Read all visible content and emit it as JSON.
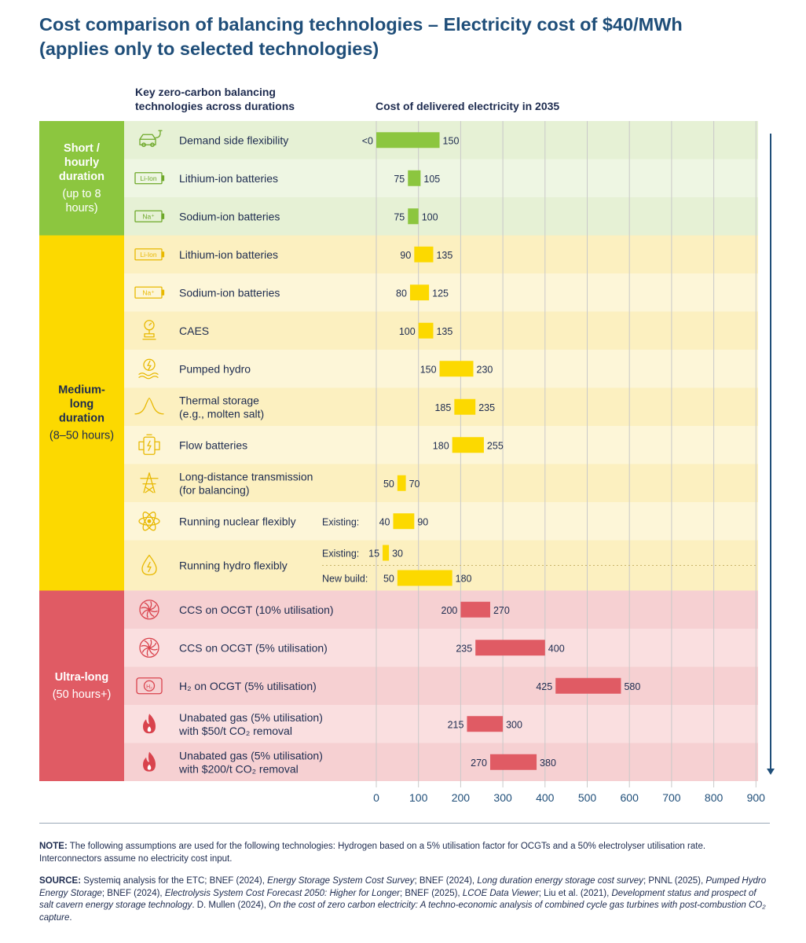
{
  "title_line1": "Cost comparison of balancing technologies – Electricity cost of $40/MWh",
  "title_line2": "(applies only to selected technologies)",
  "col_head_left_line1": "Key zero-carbon balancing",
  "col_head_left_line2": "technologies across durations",
  "col_head_right": "Cost of delivered electricity in 2035",
  "colors": {
    "short": "#8cc63f",
    "medium": "#fcd900",
    "ultra": "#e05b64",
    "axis_text": "#1f4e79",
    "arrow": "#1f4e79"
  },
  "chart_data": {
    "type": "bar",
    "orientation": "horizontal-range",
    "title": "Cost of delivered electricity in 2035",
    "xlim": [
      0,
      900
    ],
    "xticks": [
      0,
      100,
      200,
      300,
      400,
      500,
      600,
      700,
      800,
      900
    ],
    "grid": true,
    "groups": [
      {
        "key": "short",
        "label_lines": [
          [
            "Short /",
            true
          ],
          [
            "hourly",
            true
          ],
          [
            "duration",
            true
          ],
          [
            "(up to 8",
            false
          ],
          [
            "hours)",
            false
          ]
        ]
      },
      {
        "key": "medium",
        "label_lines": [
          [
            "Medium-",
            true
          ],
          [
            "long",
            true
          ],
          [
            "duration",
            true
          ],
          [
            "(8–50 hours)",
            false
          ]
        ]
      },
      {
        "key": "ultra",
        "label_lines": [
          [
            "Ultra-long",
            true
          ],
          [
            "(50 hours+)",
            false
          ]
        ]
      }
    ],
    "rows": [
      {
        "group": "short",
        "icon": "car-charging-icon",
        "name": "Demand side flexibility",
        "bars": [
          {
            "sub": "",
            "low": 0,
            "high": 150,
            "low_label": "<0",
            "high_label": "150"
          }
        ]
      },
      {
        "group": "short",
        "icon": "li-ion-battery-icon",
        "icon_text": "Li-Ion",
        "name": "Lithium-ion batteries",
        "bars": [
          {
            "sub": "",
            "low": 75,
            "high": 105,
            "low_label": "75",
            "high_label": "105"
          }
        ]
      },
      {
        "group": "short",
        "icon": "na-ion-battery-icon",
        "icon_text": "Na⁺",
        "name": "Sodium-ion batteries",
        "bars": [
          {
            "sub": "",
            "low": 75,
            "high": 100,
            "low_label": "75",
            "high_label": "100"
          }
        ]
      },
      {
        "group": "medium",
        "icon": "li-ion-battery-icon",
        "icon_text": "Li-Ion",
        "name": "Lithium-ion batteries",
        "bars": [
          {
            "sub": "",
            "low": 90,
            "high": 135,
            "low_label": "90",
            "high_label": "135"
          }
        ]
      },
      {
        "group": "medium",
        "icon": "na-ion-battery-icon",
        "icon_text": "Na⁺",
        "name": "Sodium-ion batteries",
        "bars": [
          {
            "sub": "",
            "low": 80,
            "high": 125,
            "low_label": "80",
            "high_label": "125"
          }
        ]
      },
      {
        "group": "medium",
        "icon": "caes-icon",
        "name": "CAES",
        "bars": [
          {
            "sub": "",
            "low": 100,
            "high": 135,
            "low_label": "100",
            "high_label": "135"
          }
        ]
      },
      {
        "group": "medium",
        "icon": "pumped-hydro-icon",
        "name": "Pumped hydro",
        "bars": [
          {
            "sub": "",
            "low": 150,
            "high": 230,
            "low_label": "150",
            "high_label": "230"
          }
        ]
      },
      {
        "group": "medium",
        "icon": "bell-curve-icon",
        "name": "Thermal storage|(e.g., molten salt)",
        "bars": [
          {
            "sub": "",
            "low": 185,
            "high": 235,
            "low_label": "185",
            "high_label": "235"
          }
        ]
      },
      {
        "group": "medium",
        "icon": "flow-battery-icon",
        "name": "Flow batteries",
        "bars": [
          {
            "sub": "",
            "low": 180,
            "high": 255,
            "low_label": "180",
            "high_label": "255"
          }
        ]
      },
      {
        "group": "medium",
        "icon": "transmission-tower-icon",
        "name": "Long-distance transmission|(for balancing)",
        "bars": [
          {
            "sub": "",
            "low": 50,
            "high": 70,
            "low_label": "50",
            "high_label": "70"
          }
        ]
      },
      {
        "group": "medium",
        "icon": "atom-icon",
        "name": "Running nuclear flexibly",
        "bars": [
          {
            "sub": "Existing:",
            "low": 40,
            "high": 90,
            "low_label": "40",
            "high_label": "90"
          }
        ]
      },
      {
        "group": "medium",
        "icon": "water-drop-bolt-icon",
        "name": "Running hydro flexibly",
        "tall": true,
        "bars": [
          {
            "sub": "Existing:",
            "low": 15,
            "high": 30,
            "low_label": "15",
            "high_label": "30"
          },
          {
            "sub": "New build:",
            "low": 50,
            "high": 180,
            "low_label": "50",
            "high_label": "180"
          }
        ]
      },
      {
        "group": "ultra",
        "icon": "turbine-icon",
        "name": "CCS on OCGT (10% utilisation)",
        "bars": [
          {
            "sub": "",
            "low": 200,
            "high": 270,
            "low_label": "200",
            "high_label": "270"
          }
        ]
      },
      {
        "group": "ultra",
        "icon": "turbine-icon",
        "name": "CCS on OCGT (5% utilisation)",
        "bars": [
          {
            "sub": "",
            "low": 235,
            "high": 400,
            "low_label": "235",
            "high_label": "400"
          }
        ]
      },
      {
        "group": "ultra",
        "icon": "hydrogen-tank-icon",
        "icon_text": "H₂",
        "name": "H₂ on OCGT (5% utilisation)",
        "bars": [
          {
            "sub": "",
            "low": 425,
            "high": 580,
            "low_label": "425",
            "high_label": "580"
          }
        ]
      },
      {
        "group": "ultra",
        "icon": "flame-icon",
        "name": "Unabated gas (5% utilisation)|with $50/t CO₂ removal",
        "bars": [
          {
            "sub": "",
            "low": 215,
            "high": 300,
            "low_label": "215",
            "high_label": "300"
          }
        ]
      },
      {
        "group": "ultra",
        "icon": "flame-icon",
        "name": "Unabated gas (5% utilisation)|with $200/t CO₂ removal",
        "bars": [
          {
            "sub": "",
            "low": 270,
            "high": 380,
            "low_label": "270",
            "high_label": "380"
          }
        ]
      }
    ]
  },
  "note_label": "NOTE:",
  "note_text": " The following assumptions are used for the following technologies: Hydrogen based on a 5% utilisation factor for OCGTs and a 50% electrolyser utilisation rate. Interconnectors assume no electricity cost input.",
  "source_label": "SOURCE:",
  "source_parts": [
    [
      "Systemiq analysis for the ETC; BNEF (2024), ",
      false
    ],
    [
      "Energy Storage System Cost Survey",
      true
    ],
    [
      "; BNEF (2024), ",
      false
    ],
    [
      "Long duration energy storage cost survey",
      true
    ],
    [
      "; PNNL (2025), ",
      false
    ],
    [
      "Pumped Hydro Energy Storage",
      true
    ],
    [
      "; BNEF (2024), ",
      false
    ],
    [
      "Electrolysis System Cost Forecast 2050: Higher for Longer",
      true
    ],
    [
      "; BNEF (2025), ",
      false
    ],
    [
      "LCOE Data Viewer",
      true
    ],
    [
      "; Liu et al. (2021), ",
      false
    ],
    [
      "Development status and prospect of salt cavern energy storage technology",
      true
    ],
    [
      ". D. Mullen (2024), ",
      false
    ],
    [
      "On the cost of zero carbon electricity: A techno-economic analysis of combined cycle gas turbines with post-combustion CO₂ capture",
      true
    ],
    [
      ".",
      false
    ]
  ]
}
